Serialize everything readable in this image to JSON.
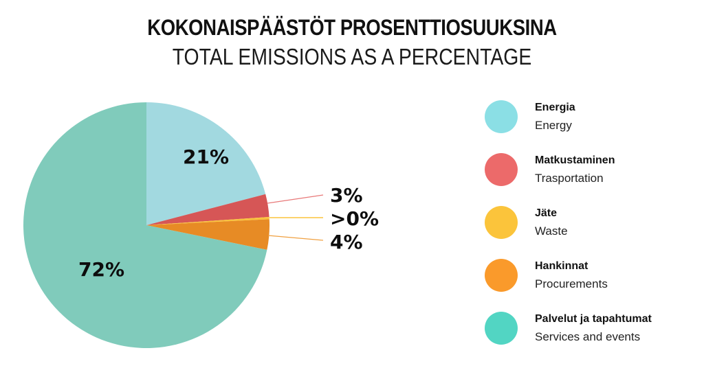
{
  "header": {
    "title": "KOKONAISPÄÄSTÖT PROSENTTIOSUUKSINA",
    "subtitle": "TOTAL EMISSIONS AS A PERCENTAGE"
  },
  "chart_data": {
    "type": "pie",
    "title": "KOKONAISPÄÄSTÖT PROSENTTIOSUUKSINA",
    "subtitle": "TOTAL EMISSIONS AS A PERCENTAGE",
    "categories": [
      "Energia / Energy",
      "Matkustaminen / Trasportation",
      "Jäte / Waste",
      "Hankinnat / Procurements",
      "Palvelut ja tapahtumat / Services and events"
    ],
    "values": [
      21,
      3,
      0.3,
      4,
      72
    ],
    "data_labels": [
      "21%",
      "3%",
      ">0%",
      "4%",
      "72%"
    ],
    "start_angle_deg": 0,
    "direction": "clockwise",
    "legend_position": "right",
    "slice_colors": [
      "#A2D9E0",
      "#D65656",
      "#F9C23C",
      "#E78B25",
      "#80CBBB"
    ]
  },
  "legend": {
    "items": [
      {
        "fi": "Energia",
        "en": "Energy",
        "color": "#8BDFE5"
      },
      {
        "fi": "Matkustaminen",
        "en": "Trasportation",
        "color": "#EC6A6A"
      },
      {
        "fi": "Jäte",
        "en": "Waste",
        "color": "#FBC43B"
      },
      {
        "fi": "Hankinnat",
        "en": "Procurements",
        "color": "#FA9A2B"
      },
      {
        "fi": "Palvelut ja tapahtumat",
        "en": "Services and events",
        "color": "#52D5C3"
      }
    ]
  },
  "labels": {
    "energy": "21%",
    "transport": "3%",
    "waste": ">0%",
    "procurement": "4%",
    "services": "72%"
  }
}
